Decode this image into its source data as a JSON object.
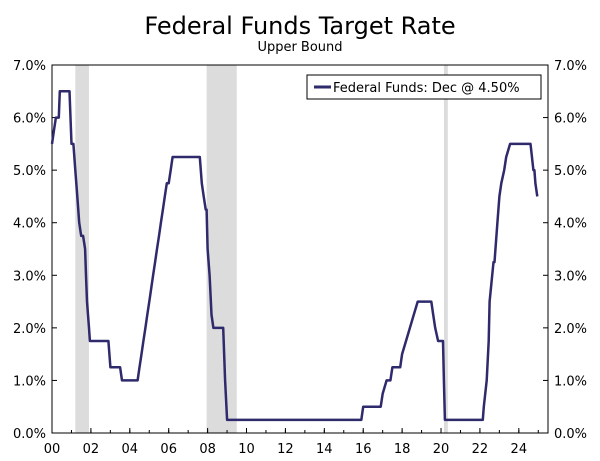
{
  "chart_data": {
    "type": "line",
    "title": "Federal Funds Target Rate",
    "subtitle": "Upper Bound",
    "xlabel": "",
    "ylabel": "",
    "xlim": [
      2000,
      2025.5
    ],
    "ylim": [
      0,
      7
    ],
    "grid": false,
    "legend": "top-right",
    "y_ticks": [
      "0.0%",
      "1.0%",
      "2.0%",
      "3.0%",
      "4.0%",
      "5.0%",
      "6.0%",
      "7.0%"
    ],
    "x_ticks": [
      {
        "label": "00",
        "x": 2000
      },
      {
        "label": "02",
        "x": 2002
      },
      {
        "label": "04",
        "x": 2004
      },
      {
        "label": "06",
        "x": 2006
      },
      {
        "label": "08",
        "x": 2008
      },
      {
        "label": "10",
        "x": 2010
      },
      {
        "label": "12",
        "x": 2012
      },
      {
        "label": "14",
        "x": 2014
      },
      {
        "label": "16",
        "x": 2016
      },
      {
        "label": "18",
        "x": 2018
      },
      {
        "label": "20",
        "x": 2020
      },
      {
        "label": "22",
        "x": 2022
      },
      {
        "label": "24",
        "x": 2024
      }
    ],
    "recessions": [
      [
        2001.2,
        2001.9
      ],
      [
        2007.95,
        2009.5
      ],
      [
        2020.15,
        2020.35
      ]
    ],
    "series": [
      {
        "name": "Federal Funds: Dec @ 4.50%",
        "color": "#2e2a6b",
        "x": [
          2000.0,
          2000.1,
          2000.2,
          2000.35,
          2000.4,
          2000.9,
          2001.0,
          2001.1,
          2001.2,
          2001.3,
          2001.4,
          2001.5,
          2001.6,
          2001.7,
          2001.75,
          2001.8,
          2001.9,
          2001.95,
          2002.0,
          2002.9,
          2003.0,
          2003.5,
          2003.6,
          2004.4,
          2004.5,
          2004.6,
          2004.7,
          2004.8,
          2004.9,
          2005.0,
          2005.1,
          2005.2,
          2005.3,
          2005.4,
          2005.5,
          2005.6,
          2005.7,
          2005.8,
          2005.9,
          2006.0,
          2006.1,
          2006.2,
          2006.3,
          2006.45,
          2006.6,
          2007.6,
          2007.7,
          2007.8,
          2007.9,
          2007.95,
          2008.0,
          2008.1,
          2008.2,
          2008.3,
          2008.4,
          2008.8,
          2008.9,
          2009.0,
          2015.9,
          2016.0,
          2016.9,
          2017.0,
          2017.2,
          2017.4,
          2017.5,
          2017.9,
          2018.0,
          2018.2,
          2018.4,
          2018.6,
          2018.8,
          2018.95,
          2019.5,
          2019.6,
          2019.7,
          2019.85,
          2019.95,
          2020.1,
          2020.15,
          2020.2,
          2021.9,
          2022.15,
          2022.2,
          2022.35,
          2022.45,
          2022.5,
          2022.7,
          2022.75,
          2022.9,
          2023.0,
          2023.1,
          2023.25,
          2023.35,
          2023.55,
          2023.6,
          2024.6,
          2024.75,
          2024.8,
          2024.85,
          2024.95
        ],
        "values": [
          5.5,
          5.75,
          6.0,
          6.0,
          6.5,
          6.5,
          5.5,
          5.5,
          5.0,
          4.5,
          4.0,
          3.75,
          3.75,
          3.5,
          3.0,
          2.5,
          2.0,
          1.75,
          1.75,
          1.75,
          1.25,
          1.25,
          1.0,
          1.0,
          1.25,
          1.5,
          1.75,
          2.0,
          2.25,
          2.5,
          2.75,
          3.0,
          3.25,
          3.5,
          3.75,
          4.0,
          4.25,
          4.5,
          4.75,
          4.75,
          5.0,
          5.25,
          5.25,
          5.25,
          5.25,
          5.25,
          4.75,
          4.5,
          4.25,
          4.25,
          3.5,
          3.0,
          2.25,
          2.0,
          2.0,
          2.0,
          1.0,
          0.25,
          0.25,
          0.5,
          0.5,
          0.75,
          1.0,
          1.0,
          1.25,
          1.25,
          1.5,
          1.75,
          2.0,
          2.25,
          2.5,
          2.5,
          2.5,
          2.25,
          2.0,
          1.75,
          1.75,
          1.75,
          1.0,
          0.25,
          0.25,
          0.25,
          0.5,
          1.0,
          1.75,
          2.5,
          3.25,
          3.25,
          4.0,
          4.5,
          4.75,
          5.0,
          5.25,
          5.5,
          5.5,
          5.5,
          5.0,
          5.0,
          4.75,
          4.5
        ]
      }
    ]
  }
}
